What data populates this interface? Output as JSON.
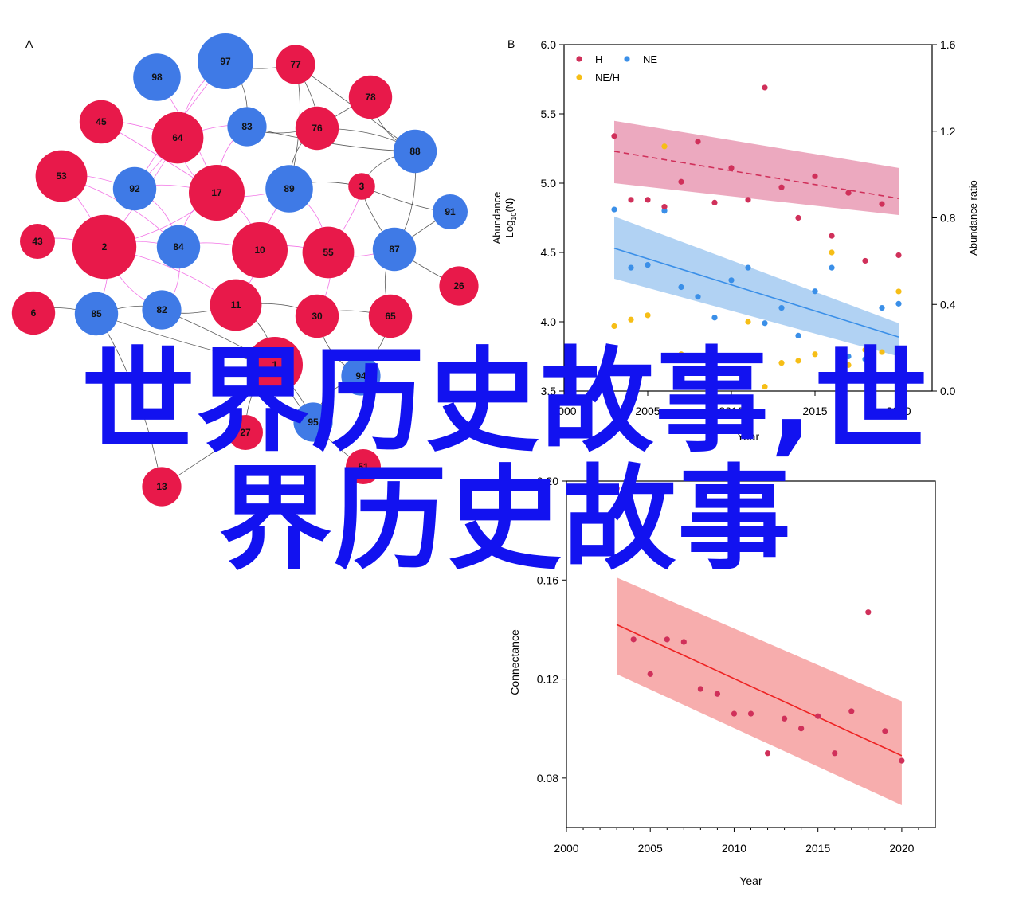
{
  "panel_labels": {
    "a": "A",
    "b": "B"
  },
  "colors": {
    "red": "#e8194a",
    "blue": "#3f7ae6",
    "edge_pink": "#ee44dd",
    "edge_dark": "#222222",
    "h_series": "#d0305a",
    "ne_series": "#3a8fe8",
    "neh_series": "#f6be16",
    "h_band": "#eaa0b8",
    "ne_band": "#a9cdf2",
    "connect_line": "#ee2222",
    "connect_band": "#f7a9a9",
    "overlay_text": "#1212f0"
  },
  "overlay": {
    "line1": "世界历史故事,世",
    "line2": "界历史故事"
  },
  "chart_data": [
    {
      "type": "network",
      "panel": "A",
      "nodes": [
        {
          "id": "97",
          "group": "blue",
          "weight": 10
        },
        {
          "id": "77",
          "group": "red",
          "weight": 6
        },
        {
          "id": "98",
          "group": "blue",
          "weight": 8
        },
        {
          "id": "78",
          "group": "red",
          "weight": 7
        },
        {
          "id": "45",
          "group": "red",
          "weight": 7
        },
        {
          "id": "64",
          "group": "red",
          "weight": 9
        },
        {
          "id": "83",
          "group": "blue",
          "weight": 6
        },
        {
          "id": "76",
          "group": "red",
          "weight": 7
        },
        {
          "id": "88",
          "group": "blue",
          "weight": 7
        },
        {
          "id": "53",
          "group": "red",
          "weight": 9
        },
        {
          "id": "92",
          "group": "blue",
          "weight": 7
        },
        {
          "id": "17",
          "group": "red",
          "weight": 10
        },
        {
          "id": "89",
          "group": "blue",
          "weight": 8
        },
        {
          "id": "3",
          "group": "red",
          "weight": 3
        },
        {
          "id": "91",
          "group": "blue",
          "weight": 5
        },
        {
          "id": "43",
          "group": "red",
          "weight": 5
        },
        {
          "id": "2",
          "group": "red",
          "weight": 12
        },
        {
          "id": "84",
          "group": "blue",
          "weight": 7
        },
        {
          "id": "10",
          "group": "red",
          "weight": 10
        },
        {
          "id": "55",
          "group": "red",
          "weight": 9
        },
        {
          "id": "87",
          "group": "blue",
          "weight": 7
        },
        {
          "id": "26",
          "group": "red",
          "weight": 6
        },
        {
          "id": "6",
          "group": "red",
          "weight": 7
        },
        {
          "id": "85",
          "group": "blue",
          "weight": 7
        },
        {
          "id": "82",
          "group": "blue",
          "weight": 6
        },
        {
          "id": "11",
          "group": "red",
          "weight": 9
        },
        {
          "id": "30",
          "group": "red",
          "weight": 7
        },
        {
          "id": "65",
          "group": "red",
          "weight": 7
        },
        {
          "id": "13",
          "group": "red",
          "weight": 6
        },
        {
          "id": "51",
          "group": "red",
          "weight": 5
        },
        {
          "id": "27",
          "group": "red",
          "weight": 5
        },
        {
          "id": "95",
          "group": "blue",
          "weight": 6
        },
        {
          "id": "94",
          "group": "blue",
          "weight": 6
        },
        {
          "id": "1",
          "group": "red",
          "weight": 10
        }
      ],
      "edges": [
        [
          "97",
          "77"
        ],
        [
          "97",
          "83"
        ],
        [
          "97",
          "64"
        ],
        [
          "77",
          "76"
        ],
        [
          "77",
          "88"
        ],
        [
          "77",
          "89"
        ],
        [
          "83",
          "76"
        ],
        [
          "83",
          "64"
        ],
        [
          "83",
          "17"
        ],
        [
          "83",
          "88"
        ],
        [
          "76",
          "89"
        ],
        [
          "76",
          "88"
        ],
        [
          "78",
          "88"
        ],
        [
          "78",
          "76"
        ],
        [
          "88",
          "3"
        ],
        [
          "88",
          "87"
        ],
        [
          "45",
          "64"
        ],
        [
          "64",
          "92"
        ],
        [
          "64",
          "17"
        ],
        [
          "64",
          "2"
        ],
        [
          "53",
          "92"
        ],
        [
          "53",
          "2"
        ],
        [
          "92",
          "17"
        ],
        [
          "92",
          "84"
        ],
        [
          "17",
          "89"
        ],
        [
          "17",
          "10"
        ],
        [
          "17",
          "84"
        ],
        [
          "17",
          "2"
        ],
        [
          "89",
          "3"
        ],
        [
          "89",
          "55"
        ],
        [
          "89",
          "10"
        ],
        [
          "3",
          "55"
        ],
        [
          "3",
          "87"
        ],
        [
          "3",
          "91"
        ],
        [
          "2",
          "84"
        ],
        [
          "2",
          "85"
        ],
        [
          "2",
          "82"
        ],
        [
          "2",
          "11"
        ],
        [
          "84",
          "10"
        ],
        [
          "84",
          "82"
        ],
        [
          "10",
          "55"
        ],
        [
          "10",
          "11"
        ],
        [
          "55",
          "87"
        ],
        [
          "55",
          "30"
        ],
        [
          "87",
          "65"
        ],
        [
          "87",
          "26"
        ],
        [
          "6",
          "85"
        ],
        [
          "85",
          "82"
        ],
        [
          "82",
          "11"
        ],
        [
          "11",
          "30"
        ],
        [
          "30",
          "65"
        ],
        [
          "85",
          "1"
        ],
        [
          "82",
          "1"
        ],
        [
          "11",
          "1"
        ],
        [
          "30",
          "94"
        ],
        [
          "65",
          "94"
        ],
        [
          "1",
          "27"
        ],
        [
          "1",
          "95"
        ],
        [
          "94",
          "95"
        ],
        [
          "13",
          "85"
        ],
        [
          "51",
          "1"
        ],
        [
          "27",
          "13"
        ],
        [
          "43",
          "2"
        ],
        [
          "98",
          "17"
        ],
        [
          "45",
          "17"
        ],
        [
          "53",
          "84"
        ],
        [
          "97",
          "92"
        ],
        [
          "91",
          "87"
        ]
      ]
    },
    {
      "type": "scatter",
      "panel": "B",
      "xlabel": "Year",
      "ylabel_left": "Abundance Log10(N)",
      "ylabel_left_main": "Abundance",
      "ylabel_left_log": "Log",
      "ylabel_left_sub": "10",
      "ylabel_left_n": "(N)",
      "ylabel_right": "Abundance ratio",
      "xlim": [
        2000,
        2022
      ],
      "ylim_left": [
        3.5,
        6.0
      ],
      "ylim_right": [
        0.0,
        1.6
      ],
      "xticks": [
        "2000",
        "2005",
        "2010",
        "2015",
        "2020"
      ],
      "yticks_left": [
        "3.5",
        "4.0",
        "4.5",
        "5.0",
        "5.5",
        "6.0"
      ],
      "yticks_right": [
        "0.0",
        "0.4",
        "0.8",
        "1.2",
        "1.6"
      ],
      "legend": {
        "position": "top-left",
        "entries": [
          "H",
          "NE",
          "NE/H"
        ]
      },
      "series": [
        {
          "name": "H",
          "axis": "left",
          "x": [
            2003,
            2004,
            2005,
            2006,
            2007,
            2008,
            2009,
            2010,
            2011,
            2012,
            2013,
            2014,
            2015,
            2016,
            2017,
            2018,
            2019,
            2020
          ],
          "y": [
            5.34,
            4.88,
            4.88,
            4.83,
            5.01,
            5.3,
            4.86,
            5.11,
            4.88,
            5.69,
            4.97,
            4.75,
            5.05,
            4.62,
            4.93,
            4.44,
            4.85,
            4.48
          ],
          "fit": {
            "x": [
              2003,
              2020
            ],
            "y": [
              5.23,
              4.89
            ]
          },
          "band_upper": [
            5.45,
            5.11
          ],
          "band_lower": [
            5.0,
            4.77
          ]
        },
        {
          "name": "NE",
          "axis": "left",
          "x": [
            2003,
            2004,
            2005,
            2006,
            2007,
            2008,
            2009,
            2010,
            2011,
            2012,
            2013,
            2014,
            2015,
            2016,
            2017,
            2018,
            2019,
            2020
          ],
          "y": [
            4.81,
            4.39,
            4.41,
            4.8,
            4.25,
            4.18,
            4.03,
            4.3,
            4.39,
            3.99,
            4.1,
            3.9,
            4.22,
            4.39,
            3.75,
            3.73,
            4.1,
            4.13
          ],
          "fit": {
            "x": [
              2003,
              2020
            ],
            "y": [
              4.53,
              3.89
            ]
          },
          "band_upper": [
            4.76,
            3.99
          ],
          "band_lower": [
            4.31,
            3.75
          ]
        },
        {
          "name": "NE/H",
          "axis": "right",
          "x": [
            2003,
            2004,
            2005,
            2006,
            2007,
            2008,
            2009,
            2010,
            2011,
            2012,
            2013,
            2014,
            2015,
            2016,
            2017,
            2018,
            2019,
            2020
          ],
          "y": [
            0.3,
            0.33,
            0.35,
            1.13,
            0.17,
            0.1,
            0.08,
            0.16,
            0.32,
            0.02,
            0.13,
            0.14,
            0.17,
            0.64,
            0.12,
            0.19,
            0.18,
            0.46
          ]
        }
      ]
    },
    {
      "type": "scatter",
      "panel": "C",
      "xlabel": "Year",
      "ylabel": "Connectance",
      "xlim": [
        2000,
        2022
      ],
      "ylim": [
        0.06,
        0.2
      ],
      "xticks": [
        "2000",
        "2005",
        "2010",
        "2015",
        "2020"
      ],
      "yticks": [
        "0.08",
        "0.12",
        "0.16",
        "0.20"
      ],
      "series": [
        {
          "name": "",
          "x": [
            2003,
            2004,
            2005,
            2006,
            2007,
            2008,
            2009,
            2010,
            2011,
            2012,
            2013,
            2014,
            2015,
            2016,
            2017,
            2018,
            2019,
            2020
          ],
          "y": [
            0.197,
            0.136,
            0.122,
            0.136,
            0.135,
            0.116,
            0.114,
            0.106,
            0.106,
            0.09,
            0.104,
            0.1,
            0.105,
            0.09,
            0.107,
            0.147,
            0.099,
            0.087
          ],
          "fit": {
            "x": [
              2003,
              2020
            ],
            "y": [
              0.142,
              0.089
            ]
          },
          "band_upper": [
            0.161,
            0.111
          ],
          "band_lower": [
            0.122,
            0.069
          ]
        }
      ]
    }
  ]
}
